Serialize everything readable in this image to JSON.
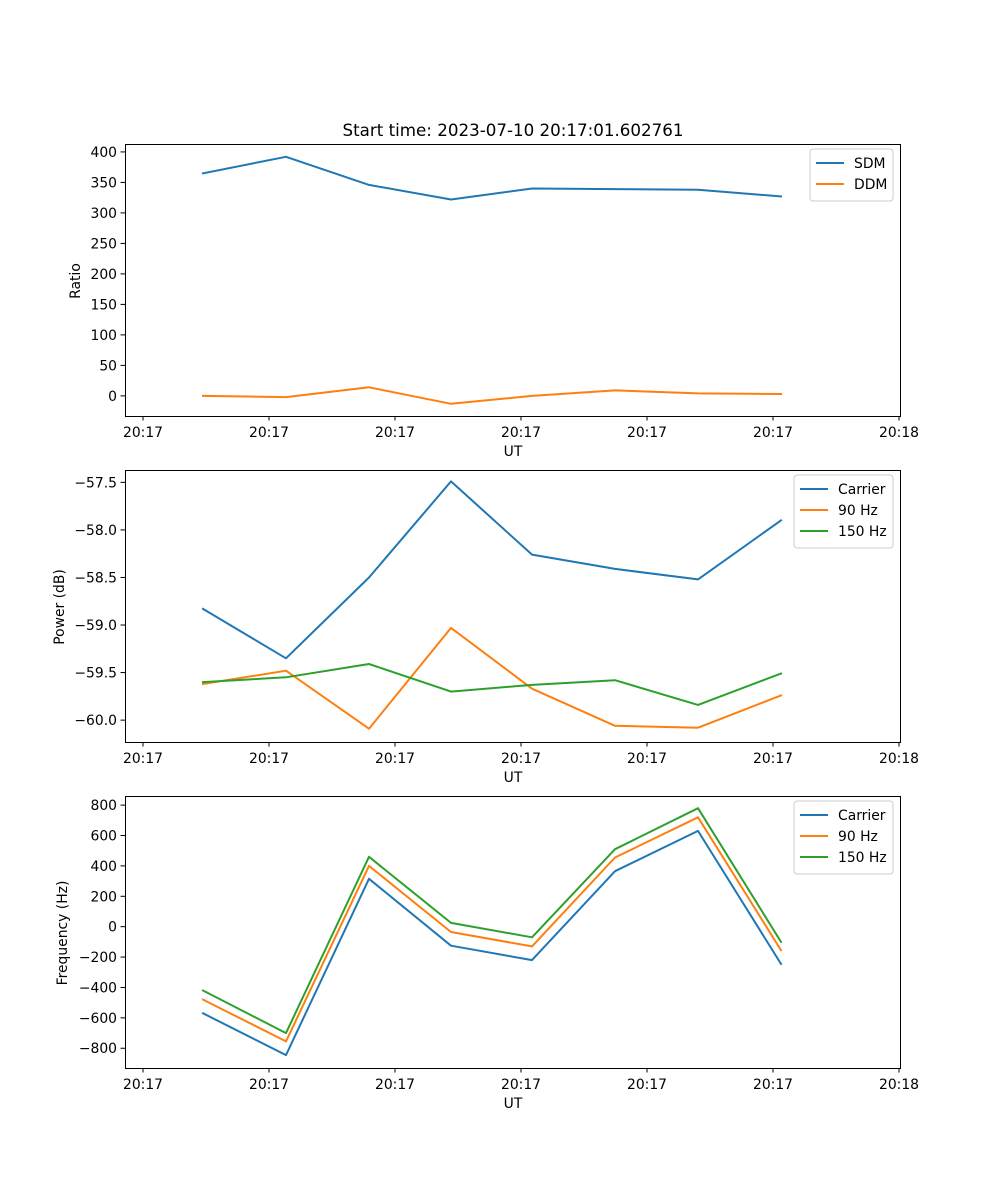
{
  "chart_data": [
    {
      "type": "line",
      "title": "Start time: 2023-07-10 20:17:01.602761",
      "xlabel": "UT",
      "ylabel": "Ratio",
      "x_ticks": [
        "20:17",
        "20:17",
        "20:17",
        "20:17",
        "20:17",
        "20:17",
        "20:17",
        "20:18"
      ],
      "ylim": [
        -33,
        413
      ],
      "y_ticks": [
        400,
        350,
        300,
        250,
        200,
        150,
        100,
        50,
        0
      ],
      "y_tick_labels": [
        "400",
        "350",
        "300",
        "250",
        "200",
        "150",
        "100",
        "50",
        "0"
      ],
      "grid": false,
      "legend_position": "top-right",
      "series": [
        {
          "name": "SDM",
          "color": "#1f77b4",
          "values": [
            365,
            392,
            346,
            322,
            340,
            339,
            338,
            327
          ]
        },
        {
          "name": "DDM",
          "color": "#ff7f0e",
          "values": [
            0,
            -2,
            14,
            -13,
            0,
            9,
            4,
            3
          ]
        }
      ]
    },
    {
      "type": "line",
      "title": "",
      "xlabel": "UT",
      "ylabel": "Power (dB)",
      "x_ticks": [
        "20:17",
        "20:17",
        "20:17",
        "20:17",
        "20:17",
        "20:17",
        "20:17",
        "20:18"
      ],
      "ylim": [
        -60.23,
        -57.37
      ],
      "y_ticks": [
        -57.5,
        -58.0,
        -58.5,
        -59.0,
        -59.5,
        -60.0
      ],
      "y_tick_labels": [
        "−57.5",
        "−58.0",
        "−58.5",
        "−59.0",
        "−59.5",
        "−60.0"
      ],
      "grid": false,
      "legend_position": "top-right",
      "series": [
        {
          "name": "Carrier",
          "color": "#1f77b4",
          "values": [
            -58.83,
            -59.35,
            -58.5,
            -57.49,
            -58.26,
            -58.41,
            -58.52,
            -57.9
          ]
        },
        {
          "name": "90 Hz",
          "color": "#ff7f0e",
          "values": [
            -59.62,
            -59.48,
            -60.09,
            -59.03,
            -59.67,
            -60.06,
            -60.08,
            -59.74
          ]
        },
        {
          "name": "150 Hz",
          "color": "#2ca02c",
          "values": [
            -59.6,
            -59.55,
            -59.41,
            -59.7,
            -59.63,
            -59.58,
            -59.84,
            -59.51
          ]
        }
      ]
    },
    {
      "type": "line",
      "title": "",
      "xlabel": "UT",
      "ylabel": "Frequency (Hz)",
      "x_ticks": [
        "20:17",
        "20:17",
        "20:17",
        "20:17",
        "20:17",
        "20:17",
        "20:17",
        "20:18"
      ],
      "ylim": [
        -930,
        860
      ],
      "y_ticks": [
        800,
        600,
        400,
        200,
        0,
        -200,
        -400,
        -600,
        -800
      ],
      "y_tick_labels": [
        "800",
        "600",
        "400",
        "200",
        "0",
        "−200",
        "−400",
        "−600",
        "−800"
      ],
      "grid": false,
      "legend_position": "top-right",
      "series": [
        {
          "name": "Carrier",
          "color": "#1f77b4",
          "values": [
            -570,
            -845,
            315,
            -125,
            -220,
            365,
            630,
            -245
          ]
        },
        {
          "name": "90 Hz",
          "color": "#ff7f0e",
          "values": [
            -480,
            -755,
            400,
            -35,
            -130,
            455,
            720,
            -155
          ]
        },
        {
          "name": "150 Hz",
          "color": "#2ca02c",
          "values": [
            -420,
            -700,
            460,
            25,
            -70,
            510,
            780,
            -100
          ]
        }
      ]
    }
  ]
}
